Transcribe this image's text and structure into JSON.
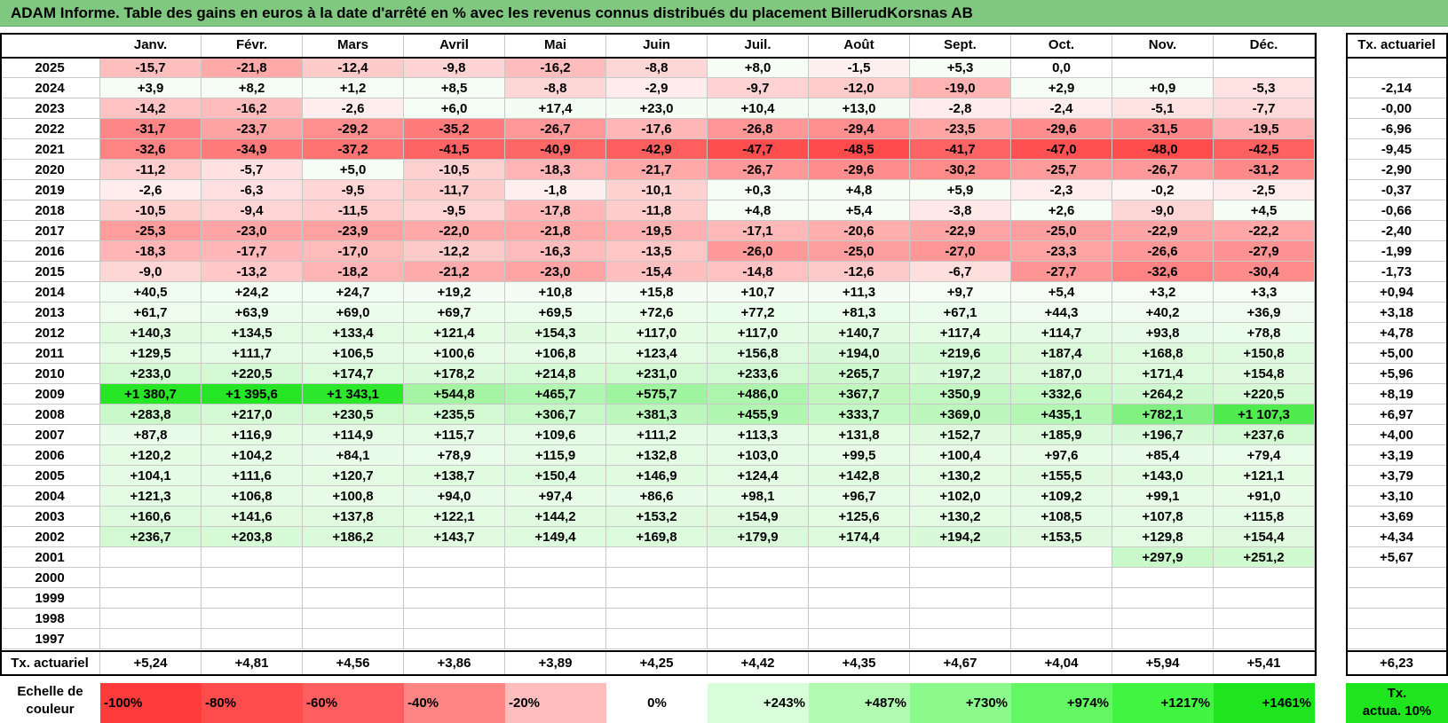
{
  "title": "ADAM Informe. Table des gains en euros à la date d'arrêté en % avec les revenus connus distribués du placement BillerudKorsnas AB",
  "months": [
    "Janv.",
    "Févr.",
    "Mars",
    "Avril",
    "Mai",
    "Juin",
    "Juil.",
    "Août",
    "Sept.",
    "Oct.",
    "Nov.",
    "Déc."
  ],
  "rate_header": "Tx. actuariel",
  "rows": [
    {
      "year": "2025",
      "values": [
        "-15,7",
        "-21,8",
        "-12,4",
        "-9,8",
        "-16,2",
        "-8,8",
        "+8,0",
        "-1,5",
        "+5,3",
        "0,0",
        "",
        ""
      ],
      "rate": ""
    },
    {
      "year": "2024",
      "values": [
        "+3,9",
        "+8,2",
        "+1,2",
        "+8,5",
        "-8,8",
        "-2,9",
        "-9,7",
        "-12,0",
        "-19,0",
        "+2,9",
        "+0,9",
        "-5,3"
      ],
      "rate": "-2,14"
    },
    {
      "year": "2023",
      "values": [
        "-14,2",
        "-16,2",
        "-2,6",
        "+6,0",
        "+17,4",
        "+23,0",
        "+10,4",
        "+13,0",
        "-2,8",
        "-2,4",
        "-5,1",
        "-7,7"
      ],
      "rate": "-0,00"
    },
    {
      "year": "2022",
      "values": [
        "-31,7",
        "-23,7",
        "-29,2",
        "-35,2",
        "-26,7",
        "-17,6",
        "-26,8",
        "-29,4",
        "-23,5",
        "-29,6",
        "-31,5",
        "-19,5"
      ],
      "rate": "-6,96"
    },
    {
      "year": "2021",
      "values": [
        "-32,6",
        "-34,9",
        "-37,2",
        "-41,5",
        "-40,9",
        "-42,9",
        "-47,7",
        "-48,5",
        "-41,7",
        "-47,0",
        "-48,0",
        "-42,5"
      ],
      "rate": "-9,45"
    },
    {
      "year": "2020",
      "values": [
        "-11,2",
        "-5,7",
        "+5,0",
        "-10,5",
        "-18,3",
        "-21,7",
        "-26,7",
        "-29,6",
        "-30,2",
        "-25,7",
        "-26,7",
        "-31,2"
      ],
      "rate": "-2,90"
    },
    {
      "year": "2019",
      "values": [
        "-2,6",
        "-6,3",
        "-9,5",
        "-11,7",
        "-1,8",
        "-10,1",
        "+0,3",
        "+4,8",
        "+5,9",
        "-2,3",
        "-0,2",
        "-2,5"
      ],
      "rate": "-0,37"
    },
    {
      "year": "2018",
      "values": [
        "-10,5",
        "-9,4",
        "-11,5",
        "-9,5",
        "-17,8",
        "-11,8",
        "+4,8",
        "+5,4",
        "-3,8",
        "+2,6",
        "-9,0",
        "+4,5"
      ],
      "rate": "-0,66"
    },
    {
      "year": "2017",
      "values": [
        "-25,3",
        "-23,0",
        "-23,9",
        "-22,0",
        "-21,8",
        "-19,5",
        "-17,1",
        "-20,6",
        "-22,9",
        "-25,0",
        "-22,9",
        "-22,2"
      ],
      "rate": "-2,40"
    },
    {
      "year": "2016",
      "values": [
        "-18,3",
        "-17,7",
        "-17,0",
        "-12,2",
        "-16,3",
        "-13,5",
        "-26,0",
        "-25,0",
        "-27,0",
        "-23,3",
        "-26,6",
        "-27,9"
      ],
      "rate": "-1,99"
    },
    {
      "year": "2015",
      "values": [
        "-9,0",
        "-13,2",
        "-18,2",
        "-21,2",
        "-23,0",
        "-15,4",
        "-14,8",
        "-12,6",
        "-6,7",
        "-27,7",
        "-32,6",
        "-30,4"
      ],
      "rate": "-1,73"
    },
    {
      "year": "2014",
      "values": [
        "+40,5",
        "+24,2",
        "+24,7",
        "+19,2",
        "+10,8",
        "+15,8",
        "+10,7",
        "+11,3",
        "+9,7",
        "+5,4",
        "+3,2",
        "+3,3"
      ],
      "rate": "+0,94"
    },
    {
      "year": "2013",
      "values": [
        "+61,7",
        "+63,9",
        "+69,0",
        "+69,7",
        "+69,5",
        "+72,6",
        "+77,2",
        "+81,3",
        "+67,1",
        "+44,3",
        "+40,2",
        "+36,9"
      ],
      "rate": "+3,18"
    },
    {
      "year": "2012",
      "values": [
        "+140,3",
        "+134,5",
        "+133,4",
        "+121,4",
        "+154,3",
        "+117,0",
        "+117,0",
        "+140,7",
        "+117,4",
        "+114,7",
        "+93,8",
        "+78,8"
      ],
      "rate": "+4,78"
    },
    {
      "year": "2011",
      "values": [
        "+129,5",
        "+111,7",
        "+106,5",
        "+100,6",
        "+106,8",
        "+123,4",
        "+156,8",
        "+194,0",
        "+219,6",
        "+187,4",
        "+168,8",
        "+150,8"
      ],
      "rate": "+5,00"
    },
    {
      "year": "2010",
      "values": [
        "+233,0",
        "+220,5",
        "+174,7",
        "+178,2",
        "+214,8",
        "+231,0",
        "+233,6",
        "+265,7",
        "+197,2",
        "+187,0",
        "+171,4",
        "+154,8"
      ],
      "rate": "+5,96"
    },
    {
      "year": "2009",
      "values": [
        "+1 380,7",
        "+1 395,6",
        "+1 343,1",
        "+544,8",
        "+465,7",
        "+575,7",
        "+486,0",
        "+367,7",
        "+350,9",
        "+332,6",
        "+264,2",
        "+220,5"
      ],
      "rate": "+8,19"
    },
    {
      "year": "2008",
      "values": [
        "+283,8",
        "+217,0",
        "+230,5",
        "+235,5",
        "+306,7",
        "+381,3",
        "+455,9",
        "+333,7",
        "+369,0",
        "+435,1",
        "+782,1",
        "+1 107,3"
      ],
      "rate": "+6,97"
    },
    {
      "year": "2007",
      "values": [
        "+87,8",
        "+116,9",
        "+114,9",
        "+115,7",
        "+109,6",
        "+111,2",
        "+113,3",
        "+131,8",
        "+152,7",
        "+185,9",
        "+196,7",
        "+237,6"
      ],
      "rate": "+4,00"
    },
    {
      "year": "2006",
      "values": [
        "+120,2",
        "+104,2",
        "+84,1",
        "+78,9",
        "+115,9",
        "+132,8",
        "+103,0",
        "+99,5",
        "+100,4",
        "+97,6",
        "+85,4",
        "+79,4"
      ],
      "rate": "+3,19"
    },
    {
      "year": "2005",
      "values": [
        "+104,1",
        "+111,6",
        "+120,7",
        "+138,7",
        "+150,4",
        "+146,9",
        "+124,4",
        "+142,8",
        "+130,2",
        "+155,5",
        "+143,0",
        "+121,1"
      ],
      "rate": "+3,79"
    },
    {
      "year": "2004",
      "values": [
        "+121,3",
        "+106,8",
        "+100,8",
        "+94,0",
        "+97,4",
        "+86,6",
        "+98,1",
        "+96,7",
        "+102,0",
        "+109,2",
        "+99,1",
        "+91,0"
      ],
      "rate": "+3,10"
    },
    {
      "year": "2003",
      "values": [
        "+160,6",
        "+141,6",
        "+137,8",
        "+122,1",
        "+144,2",
        "+153,2",
        "+154,9",
        "+125,6",
        "+130,2",
        "+108,5",
        "+107,8",
        "+115,8"
      ],
      "rate": "+3,69"
    },
    {
      "year": "2002",
      "values": [
        "+236,7",
        "+203,8",
        "+186,2",
        "+143,7",
        "+149,4",
        "+169,8",
        "+179,9",
        "+174,4",
        "+194,2",
        "+153,5",
        "+129,8",
        "+154,4"
      ],
      "rate": "+4,34"
    },
    {
      "year": "2001",
      "values": [
        "",
        "",
        "",
        "",
        "",
        "",
        "",
        "",
        "",
        "",
        "+297,9",
        "+251,2"
      ],
      "rate": "+5,67"
    },
    {
      "year": "2000",
      "values": [
        "",
        "",
        "",
        "",
        "",
        "",
        "",
        "",
        "",
        "",
        "",
        ""
      ],
      "rate": ""
    },
    {
      "year": "1999",
      "values": [
        "",
        "",
        "",
        "",
        "",
        "",
        "",
        "",
        "",
        "",
        "",
        ""
      ],
      "rate": ""
    },
    {
      "year": "1998",
      "values": [
        "",
        "",
        "",
        "",
        "",
        "",
        "",
        "",
        "",
        "",
        "",
        ""
      ],
      "rate": ""
    },
    {
      "year": "1997",
      "values": [
        "",
        "",
        "",
        "",
        "",
        "",
        "",
        "",
        "",
        "",
        "",
        ""
      ],
      "rate": ""
    }
  ],
  "footer": {
    "label": "Tx. actuariel",
    "values": [
      "+5,24",
      "+4,81",
      "+4,56",
      "+3,86",
      "+3,89",
      "+4,25",
      "+4,42",
      "+4,35",
      "+4,67",
      "+4,04",
      "+5,94",
      "+5,41"
    ],
    "total": "+6,23"
  },
  "legend": {
    "title_line1": "Echelle de",
    "title_line2": "couleur",
    "steps": [
      {
        "label": "-100%",
        "color": "#ff3b3b"
      },
      {
        "label": "-80%",
        "color": "#ff4c4c"
      },
      {
        "label": "-60%",
        "color": "#ff5e5e"
      },
      {
        "label": "-40%",
        "color": "#ff8585"
      },
      {
        "label": "-20%",
        "color": "#ffbdbd"
      },
      {
        "label": "0%",
        "color": "#ffffff"
      },
      {
        "label": "+243%",
        "color": "#d8fdd8"
      },
      {
        "label": "+487%",
        "color": "#b0fbb0"
      },
      {
        "label": "+730%",
        "color": "#8cf98c"
      },
      {
        "label": "+974%",
        "color": "#63f763"
      },
      {
        "label": "+1217%",
        "color": "#43f543"
      },
      {
        "label": "+1461%",
        "color": "#1fe51f"
      }
    ],
    "rate_label_line1": "Tx.",
    "rate_label_line2": "actua. 10%",
    "rate_color": "#1fe51f"
  },
  "colors": {
    "title_bar": "#80c77f",
    "positive_max": "#1fe51f",
    "negative_max": "#ff3b3b"
  }
}
